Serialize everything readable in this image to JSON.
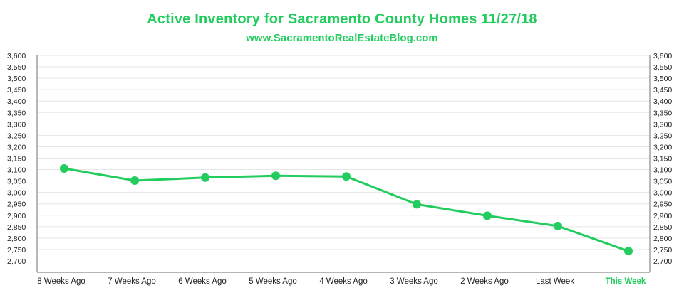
{
  "header": {
    "title": "Active Inventory for Sacramento County Homes 11/27/18",
    "subtitle": "www.SacramentoRealEstateBlog.com"
  },
  "colors": {
    "accent": "#22cc5e",
    "grid": "#e6e6e6",
    "axis": "#8a8a8a",
    "text": "#222222"
  },
  "chart_data": {
    "type": "line",
    "title": "Active Inventory for Sacramento County Homes 11/27/18",
    "subtitle": "www.SacramentoRealEstateBlog.com",
    "xlabel": "",
    "ylabel": "",
    "categories": [
      "8 Weeks Ago",
      "7 Weeks Ago",
      "6 Weeks Ago",
      "5 Weeks Ago",
      "4 Weeks Ago",
      "3 Weeks Ago",
      "2 Weeks Ago",
      "Last Week",
      "This Week"
    ],
    "highlight_category": "This Week",
    "series": [
      {
        "values": [
          3105,
          3052,
          3065,
          3073,
          3070,
          2948,
          2898,
          2853,
          2743
        ]
      }
    ],
    "ylim": [
      2700,
      3600
    ],
    "yticks": [
      2700,
      2750,
      2800,
      2850,
      2900,
      2950,
      3000,
      3050,
      3100,
      3150,
      3200,
      3250,
      3300,
      3350,
      3400,
      3450,
      3500,
      3550,
      3600
    ],
    "ytick_labels": [
      "2,700",
      "2,750",
      "2,800",
      "2,850",
      "2,900",
      "2,950",
      "3,000",
      "3,050",
      "3,100",
      "3,150",
      "3,200",
      "3,250",
      "3,300",
      "3,350",
      "3,400",
      "3,450",
      "3,500",
      "3,550",
      "3,600"
    ],
    "secondary_y_axis": true,
    "grid": true,
    "legend": "none"
  }
}
